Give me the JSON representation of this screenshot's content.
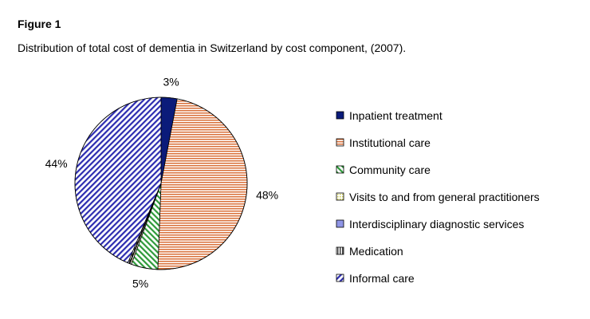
{
  "figure": {
    "label": "Figure 1",
    "caption": "Distribution of total cost of dementia in Switzerland by cost component, (2007)."
  },
  "chart_data": {
    "type": "pie",
    "title": "Distribution of total cost of dementia in Switzerland by cost component, (2007).",
    "legend_position": "right",
    "slices": [
      {
        "name": "Inpatient treatment",
        "value": 3,
        "label": "3%",
        "color": "#0b1b7a",
        "pattern": "solid"
      },
      {
        "name": "Institutional care",
        "value": 47.6,
        "label": "48%",
        "color": "#d9703a",
        "pattern": "horizontal"
      },
      {
        "name": "Community care",
        "value": 5,
        "label": "5%",
        "color": "#2e9a3a",
        "pattern": "diagonal-right"
      },
      {
        "name": "Visits to and from general practitioners",
        "value": 0.3,
        "label": "",
        "color": "#c9c94a",
        "pattern": "dots"
      },
      {
        "name": "Interdisciplinary diagnostic services",
        "value": 0.1,
        "label": "",
        "color": "#8f95e6",
        "pattern": "solid"
      },
      {
        "name": "Medication",
        "value": 0.3,
        "label": "",
        "color": "#444444",
        "pattern": "vertical"
      },
      {
        "name": "Informal care",
        "value": 43.7,
        "label": "44%",
        "color": "#2c2cb0",
        "pattern": "diagonal-left"
      }
    ]
  }
}
